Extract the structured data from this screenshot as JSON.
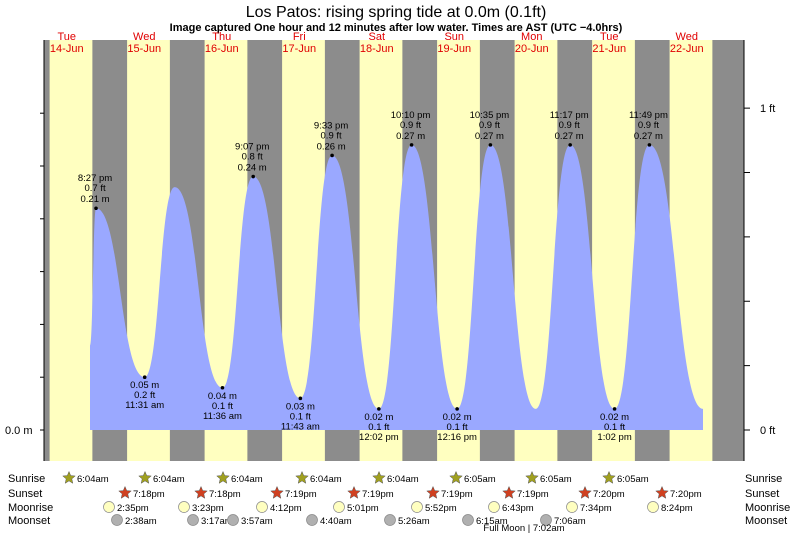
{
  "title": "Los Patos: rising  spring tide at 0.0m (0.1ft)",
  "subtitle": "Image captured One hour and 12 minutes after low water. Times are AST (UTC −4.0hrs)",
  "colors": {
    "night": "#8c8c8c",
    "day": "#ffffc0",
    "tide_fill": "#9aa8ff",
    "day_label": "#e00000",
    "sunrise_star": "#a0a020",
    "sunset_star": "#d04020",
    "moonrise": "#ffffc0",
    "moonset": "#b0b0b0"
  },
  "chart_data": {
    "type": "area",
    "y_left_labels": [
      "0.0 m"
    ],
    "y_right_labels": [
      "1 ft",
      "0 ft"
    ],
    "days": [
      {
        "weekday": "Tue",
        "date": "14-Jun"
      },
      {
        "weekday": "Wed",
        "date": "15-Jun"
      },
      {
        "weekday": "Thu",
        "date": "16-Jun"
      },
      {
        "weekday": "Fri",
        "date": "17-Jun"
      },
      {
        "weekday": "Sat",
        "date": "18-Jun"
      },
      {
        "weekday": "Sun",
        "date": "19-Jun"
      },
      {
        "weekday": "Mon",
        "date": "20-Jun"
      },
      {
        "weekday": "Tue",
        "date": "21-Jun"
      },
      {
        "weekday": "Wed",
        "date": "22-Jun"
      }
    ],
    "extremes": [
      {
        "type": "high",
        "day": "14-Jun",
        "time": "8:27 pm",
        "ft": "0.7 ft",
        "m": "0.21 m",
        "value_m": 0.21
      },
      {
        "type": "low",
        "day": "15-Jun",
        "time": "11:31 am",
        "ft": "0.2 ft",
        "m": "0.05 m",
        "value_m": 0.05
      },
      {
        "type": "high",
        "day": "15-Jun",
        "time": "",
        "ft": "",
        "m": "",
        "value_m": 0.23
      },
      {
        "type": "low",
        "day": "16-Jun",
        "time": "11:36 am",
        "ft": "0.1 ft",
        "m": "0.04 m",
        "value_m": 0.04
      },
      {
        "type": "high",
        "day": "16-Jun",
        "time": "9:07 pm",
        "ft": "0.8 ft",
        "m": "0.24 m",
        "value_m": 0.24
      },
      {
        "type": "low",
        "day": "17-Jun",
        "time": "11:43 am",
        "ft": "0.1 ft",
        "m": "0.03 m",
        "value_m": 0.03
      },
      {
        "type": "high",
        "day": "17-Jun",
        "time": "9:33 pm",
        "ft": "0.9 ft",
        "m": "0.26 m",
        "value_m": 0.26
      },
      {
        "type": "low",
        "day": "18-Jun",
        "time": "12:02 pm",
        "ft": "0.1 ft",
        "m": "0.02 m",
        "value_m": 0.02
      },
      {
        "type": "high",
        "day": "18-Jun",
        "time": "10:10 pm",
        "ft": "0.9 ft",
        "m": "0.27 m",
        "value_m": 0.27
      },
      {
        "type": "low",
        "day": "19-Jun",
        "time": "12:16 pm",
        "ft": "0.1 ft",
        "m": "0.02 m",
        "value_m": 0.02
      },
      {
        "type": "high",
        "day": "19-Jun",
        "time": "10:35 pm",
        "ft": "0.9 ft",
        "m": "0.27 m",
        "value_m": 0.27
      },
      {
        "type": "low",
        "day": "20-Jun",
        "time": "",
        "ft": "",
        "m": "",
        "value_m": 0.02
      },
      {
        "type": "high",
        "day": "20-Jun",
        "time": "11:17 pm",
        "ft": "0.9 ft",
        "m": "0.27 m",
        "value_m": 0.27
      },
      {
        "type": "low",
        "day": "21-Jun",
        "time": "1:02 pm",
        "ft": "0.1 ft",
        "m": "0.02 m",
        "value_m": 0.02
      },
      {
        "type": "high",
        "day": "21-Jun",
        "time": "11:49 pm",
        "ft": "0.9 ft",
        "m": "0.27 m",
        "value_m": 0.27
      }
    ]
  },
  "rows": {
    "sunrise": {
      "label": "Sunrise",
      "times": [
        "6:04am",
        "6:04am",
        "6:04am",
        "6:04am",
        "6:04am",
        "6:05am",
        "6:05am",
        "6:05am"
      ]
    },
    "sunset": {
      "label": "Sunset",
      "times": [
        "7:18pm",
        "7:18pm",
        "7:19pm",
        "7:19pm",
        "7:19pm",
        "7:19pm",
        "7:20pm",
        "7:20pm"
      ]
    },
    "moonrise": {
      "label": "Moonrise",
      "times": [
        "2:35pm",
        "3:23pm",
        "4:12pm",
        "5:01pm",
        "5:52pm",
        "6:43pm",
        "7:34pm",
        "8:24pm"
      ]
    },
    "moonset": {
      "label": "Moonset",
      "times": [
        "2:38am",
        "3:17am",
        "3:57am",
        "4:40am",
        "5:26am",
        "6:15am",
        "7:06am"
      ]
    }
  },
  "footnote": "Full Moon | 7:02am"
}
